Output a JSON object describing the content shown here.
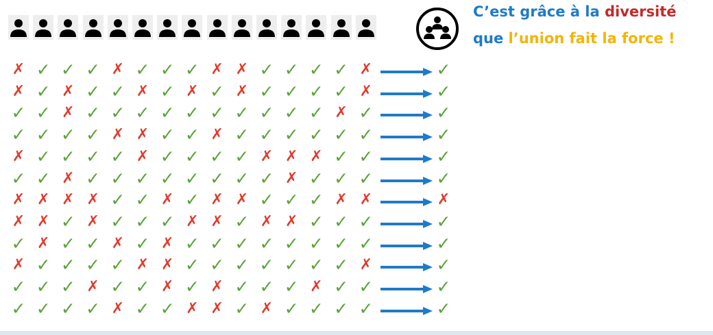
{
  "headline": {
    "line1": [
      {
        "text": "C’est grâce à la ",
        "color": "blue"
      },
      {
        "text": "diversité",
        "color": "red"
      }
    ],
    "line2": [
      {
        "text": "que ",
        "color": "blue"
      },
      {
        "text": "l’union fait la force",
        "color": "yellow"
      },
      {
        "text": " !",
        "color": "yellow"
      }
    ]
  },
  "icons": {
    "person": "person-icon",
    "group": "group-icon",
    "arrow": "right-arrow",
    "check": "check-mark",
    "cross": "cross-mark"
  },
  "colors": {
    "check": "#5aa33a",
    "cross": "#e23a2b",
    "arrow": "#1f7ac9",
    "blue_text": "#1f7ac9",
    "red_text": "#c62828",
    "yellow_text": "#f5b400"
  },
  "votes": [
    "XVVVXVVVXXVVVVX",
    "XVXVVXVXVXVVVVX",
    "VVXVVVVVVVVVVXV",
    "VVVVXXVVXVVVVVV",
    "XVVVVXVVVVXXXVV",
    "VVXVVVVVVVVXVVV",
    "XXXXVVXVXXVVVXX",
    "XXVXVVVXXVXXVVV",
    "VXVVXVXVVVVVVVV",
    "XVVVVXXVVVVVVVX",
    "VVVXVVXVXVVVXVV",
    "VVVVXVVXXVXVVVV"
  ],
  "results": "VVVVVVXVVVVV"
}
